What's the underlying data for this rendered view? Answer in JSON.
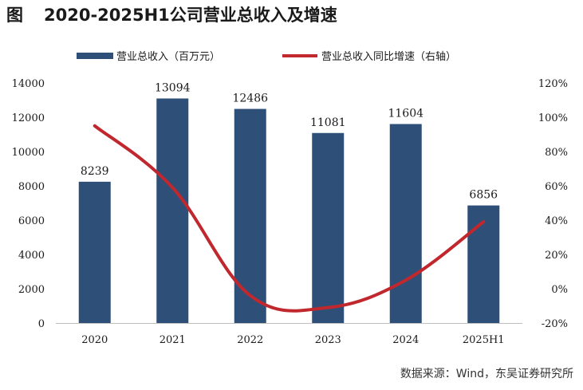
{
  "page": {
    "title_prefix": "图",
    "title": "2020-2025H1公司营业总收入及增速",
    "source": "数据来源：Wind，东吴证券研究所"
  },
  "chart_data": {
    "type": "bar",
    "categories": [
      "2020",
      "2021",
      "2022",
      "2023",
      "2024",
      "2025H1"
    ],
    "series": [
      {
        "name": "营业总收入（百万元）",
        "type": "bar",
        "axis": "left",
        "color": "#2e5078",
        "values": [
          8239,
          13094,
          12486,
          11081,
          11604,
          6856
        ]
      },
      {
        "name": "营业总收入同比增速（右轴）",
        "type": "line",
        "axis": "right",
        "color": "#c0282d",
        "values": [
          95,
          59,
          -4,
          -11,
          5,
          39
        ]
      }
    ],
    "left_axis": {
      "ylim": [
        0,
        14000
      ],
      "ticks": [
        "0",
        "2000",
        "4000",
        "6000",
        "8000",
        "10000",
        "12000",
        "14000"
      ]
    },
    "right_axis": {
      "ylim": [
        -20,
        120
      ],
      "ticks": [
        "-20%",
        "0%",
        "20%",
        "40%",
        "60%",
        "80%",
        "100%",
        "120%"
      ]
    },
    "data_labels": [
      "8239",
      "13094",
      "12486",
      "11081",
      "11604",
      "6856"
    ],
    "legend_position": "top",
    "grid": false
  }
}
